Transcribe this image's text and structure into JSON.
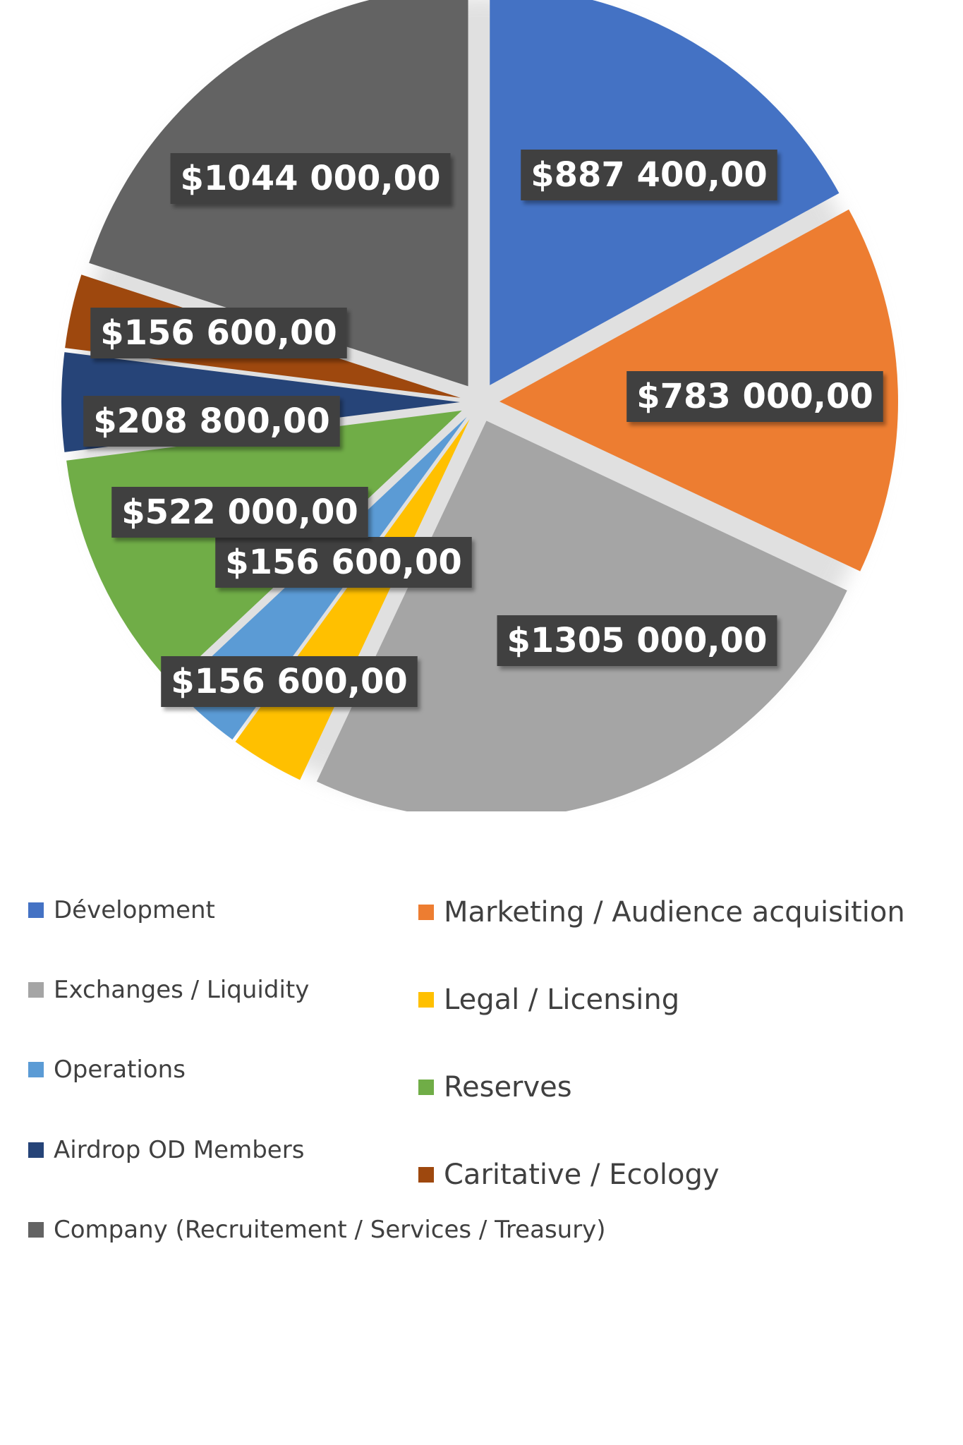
{
  "chart_data": {
    "type": "pie",
    "categories": [
      "Dévelopment",
      "Marketing / Audience acquisition",
      "Exchanges / Liquidity",
      "Legal / Licensing",
      "Operations",
      "Reserves",
      "Airdrop OD Members",
      "Caritative / Ecology",
      "Company (Recruitement / Services / Treasury)"
    ],
    "values": [
      887400,
      783000,
      1305000,
      156600,
      156600,
      522000,
      208800,
      156600,
      1044000
    ],
    "data_labels": [
      "$887 400,00",
      "$783 000,00",
      "$1305 000,00",
      "$156 600,00",
      "$156 600,00",
      "$522 000,00",
      "$208 800,00",
      "$156 600,00",
      "$1044 000,00"
    ],
    "colors": [
      "#4472c4",
      "#ed7d31",
      "#a5a5a5",
      "#ffc000",
      "#5b9bd5",
      "#70ad47",
      "#264478",
      "#9e480e",
      "#636363"
    ],
    "title": "",
    "legend": "bottom",
    "exploded": true
  }
}
